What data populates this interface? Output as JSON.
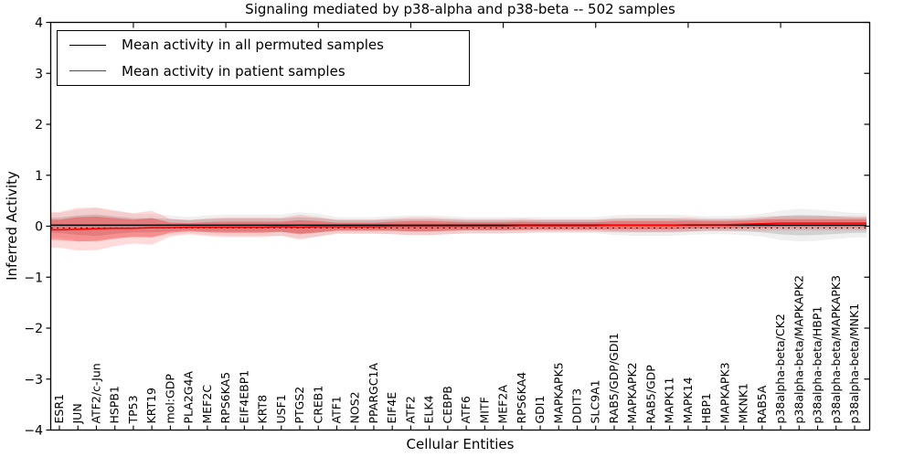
{
  "figure": {
    "title": "Signaling mediated by p38-alpha and p38-beta -- 502 samples",
    "xlabel": "Cellular Entities",
    "ylabel": "Inferred Activity"
  },
  "legend": {
    "items": [
      {
        "label": "Mean activity in all permuted samples",
        "color": "#000000"
      },
      {
        "label": "Mean activity in patient samples",
        "color": "#ff0000"
      }
    ]
  },
  "chart_data": {
    "type": "line",
    "title": "Signaling mediated by p38-alpha and p38-beta -- 502 samples",
    "xlabel": "Cellular Entities",
    "ylabel": "Inferred Activity",
    "ylim": [
      -4,
      4
    ],
    "ytick_values": [
      4,
      3,
      2,
      1,
      0,
      -1,
      -2,
      -3,
      -4
    ],
    "ytick_labels": [
      "4",
      "3",
      "2",
      "1",
      "0",
      "−1",
      "−2",
      "−3",
      "−4"
    ],
    "grid": false,
    "legend_position": "upper left",
    "categories": [
      "ESR1",
      "JUN",
      "ATF2/c-Jun",
      "HSPB1",
      "TP53",
      "KRT19",
      "mol:GDP",
      "PLA2G4A",
      "MEF2C",
      "RPS6KA5",
      "EIF4EBP1",
      "KRT8",
      "USF1",
      "PTGS2",
      "CREB1",
      "ATF1",
      "NOS2",
      "PPARGC1A",
      "EIF4E",
      "ATF2",
      "ELK4",
      "CEBPB",
      "ATF6",
      "MITF",
      "MEF2A",
      "RPS6KA4",
      "GDI1",
      "MAPKAPK5",
      "DDIT3",
      "SLC9A1",
      "RAB5/GDP/GDI1",
      "MAPKAPK2",
      "RAB5/GDP",
      "MAPK11",
      "MAPK14",
      "HBP1",
      "MAPKAPK3",
      "MKNK1",
      "RAB5A",
      "p38alpha-beta/CK2",
      "p38alpha-beta/MAPKAPK2",
      "p38alpha-beta/HBP1",
      "p38alpha-beta/MAPKAPK3",
      "p38alpha-beta/MNK1"
    ],
    "series": [
      {
        "name": "Mean activity in all permuted samples",
        "color": "#000000",
        "style": "solid",
        "constant": 0.02
      },
      {
        "name": "Mean activity in patient samples",
        "color": "#ff0000",
        "style": "solid",
        "values": [
          -0.07,
          -0.06,
          -0.05,
          -0.04,
          -0.04,
          -0.03,
          -0.03,
          -0.02,
          -0.02,
          -0.02,
          -0.02,
          -0.02,
          -0.01,
          -0.02,
          -0.01,
          -0.01,
          -0.01,
          -0.01,
          0,
          0,
          0,
          0,
          0,
          0,
          0,
          0.01,
          0.01,
          0.01,
          0.01,
          0.01,
          0.02,
          0.02,
          0.02,
          0.02,
          0.03,
          0.03,
          0.03,
          0.04,
          0.05,
          0.06,
          0.06,
          0.06,
          0.06,
          0.06
        ]
      },
      {
        "name": "zero-reference",
        "color": "#000000",
        "style": "dotted",
        "constant": -0.035
      }
    ],
    "bands": [
      {
        "name": "patient-sd-band",
        "color": "#ff0000",
        "center_series": "Mean activity in patient samples",
        "half_widths": [
          0.2,
          0.24,
          0.24,
          0.2,
          0.17,
          0.19,
          0.1,
          0.08,
          0.1,
          0.11,
          0.11,
          0.11,
          0.1,
          0.14,
          0.11,
          0.08,
          0.08,
          0.08,
          0.09,
          0.1,
          0.1,
          0.09,
          0.08,
          0.08,
          0.08,
          0.08,
          0.07,
          0.07,
          0.07,
          0.07,
          0.08,
          0.08,
          0.08,
          0.08,
          0.08,
          0.07,
          0.07,
          0.07,
          0.08,
          0.08,
          0.08,
          0.08,
          0.08,
          0.08
        ]
      },
      {
        "name": "permuted-sd-band",
        "color": "#808080",
        "center_series": "Mean activity in all permuted samples",
        "half_widths": [
          0.15,
          0.19,
          0.21,
          0.17,
          0.14,
          0.14,
          0.12,
          0.1,
          0.12,
          0.13,
          0.13,
          0.13,
          0.13,
          0.16,
          0.14,
          0.1,
          0.1,
          0.1,
          0.11,
          0.12,
          0.12,
          0.11,
          0.1,
          0.1,
          0.1,
          0.1,
          0.1,
          0.1,
          0.1,
          0.1,
          0.12,
          0.13,
          0.13,
          0.13,
          0.12,
          0.11,
          0.11,
          0.12,
          0.14,
          0.18,
          0.2,
          0.19,
          0.17,
          0.15
        ]
      }
    ]
  }
}
